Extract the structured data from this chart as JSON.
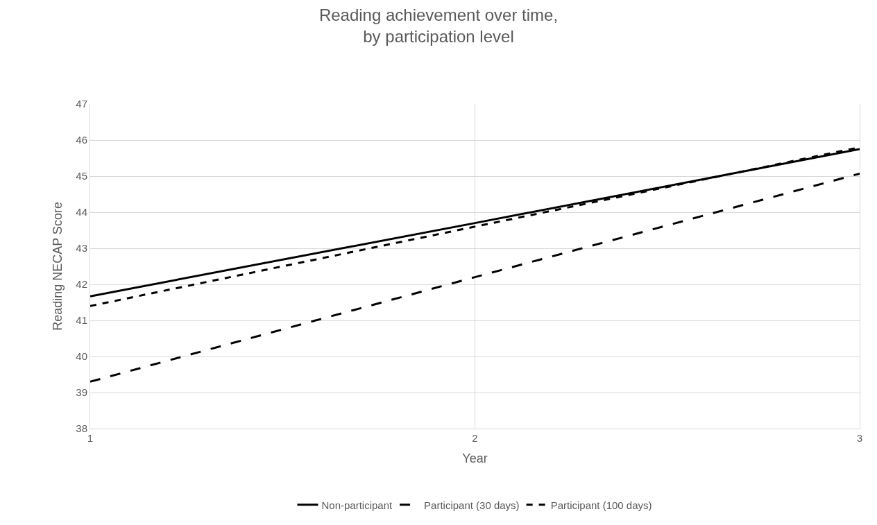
{
  "chart_data": {
    "type": "line",
    "title": "Reading achievement over time,\nby participation level",
    "xlabel": "Year",
    "ylabel": "Reading NECAP Score",
    "x": [
      1,
      2,
      3
    ],
    "xlim": [
      1,
      3
    ],
    "xticks": [
      1,
      2,
      3
    ],
    "ylim": [
      38,
      47
    ],
    "yticks": [
      38,
      39,
      40,
      41,
      42,
      43,
      44,
      45,
      46,
      47
    ],
    "grid": true,
    "legend": "bottom",
    "marker": "none",
    "series": [
      {
        "name": "Non-participant",
        "color": "#000000",
        "line_style": "solid",
        "values": [
          41.67,
          43.7,
          45.75
        ]
      },
      {
        "name": "Participant (30 days)",
        "color": "#000000",
        "line_style": "dashed",
        "values": [
          39.3,
          42.2,
          45.07
        ]
      },
      {
        "name": "Participant (100 days)",
        "color": "#000000",
        "line_style": "dotted",
        "values": [
          41.4,
          43.6,
          45.8
        ]
      }
    ]
  }
}
